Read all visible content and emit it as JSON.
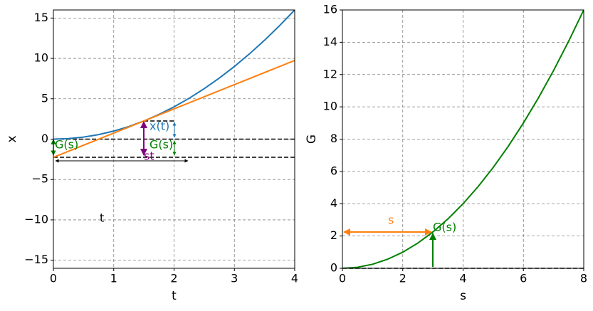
{
  "chart_data": [
    {
      "type": "line",
      "xlabel": "t",
      "ylabel": "x",
      "xlim": [
        0,
        4
      ],
      "ylim": [
        -16,
        16
      ],
      "xticks": [
        0,
        1,
        2,
        3,
        4
      ],
      "yticks": [
        {
          "value": -15,
          "label": "−15"
        },
        {
          "value": -10,
          "label": "−10"
        },
        {
          "value": -5,
          "label": "−5"
        },
        0,
        5,
        10,
        15
      ],
      "grid": true,
      "series": [
        {
          "color": "#1f77b4",
          "x": [
            0,
            0.25,
            0.5,
            0.75,
            1,
            1.25,
            1.5,
            1.75,
            2,
            2.25,
            2.5,
            2.75,
            3,
            3.25,
            3.5,
            3.75,
            4
          ],
          "values": [
            0,
            0.0625,
            0.25,
            0.5625,
            1,
            1.5625,
            2.25,
            3.0625,
            4,
            5.0625,
            6.25,
            7.5625,
            9,
            10.5625,
            12.25,
            14.0625,
            16
          ]
        },
        {
          "color": "#ff7f0e",
          "x": [
            0,
            4
          ],
          "values": [
            -2.25,
            9.75
          ]
        }
      ],
      "hlines": [
        0,
        -2.25
      ],
      "annotations": [
        "G(s)",
        "x(t)",
        "G(s)",
        "st",
        "t"
      ]
    },
    {
      "type": "line",
      "xlabel": "s",
      "ylabel": "G",
      "xlim": [
        0,
        8
      ],
      "ylim": [
        0,
        16
      ],
      "xticks": [
        0,
        2,
        4,
        6,
        8
      ],
      "yticks": [
        0,
        2,
        4,
        6,
        8,
        10,
        12,
        14,
        16
      ],
      "grid": true,
      "series": [
        {
          "color": "#008000",
          "x": [
            0,
            0.5,
            1,
            1.5,
            2,
            2.5,
            3,
            3.5,
            4,
            4.5,
            5,
            5.5,
            6,
            6.5,
            7,
            7.5,
            8
          ],
          "values": [
            0,
            0.0625,
            0.25,
            0.5625,
            1,
            1.5625,
            2.25,
            3.0625,
            4,
            5.0625,
            6.25,
            7.5625,
            9,
            10.5625,
            12.25,
            14.0625,
            16
          ]
        }
      ],
      "hlines": [
        0
      ],
      "annotations": [
        "s",
        "G(s)"
      ]
    }
  ]
}
